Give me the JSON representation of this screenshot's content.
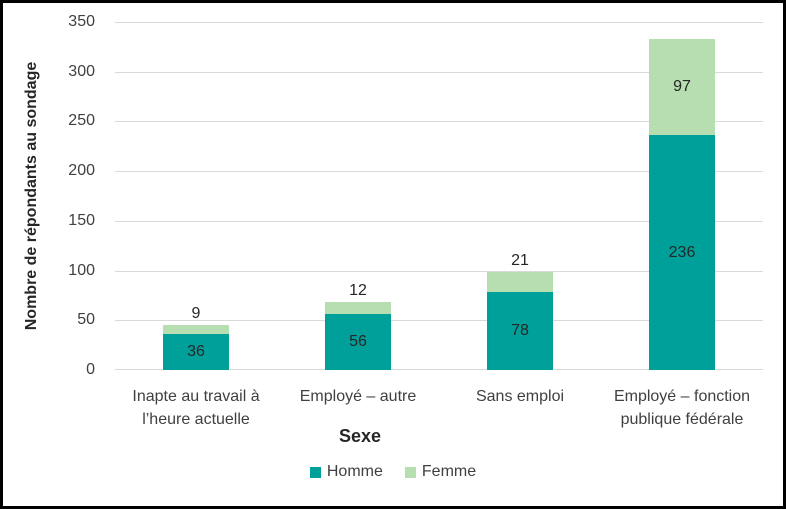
{
  "chart_data": {
    "type": "bar",
    "stacked": true,
    "title": "",
    "xlabel": "Sexe",
    "ylabel": "Nombre de répondants au sondage",
    "ylim": [
      0,
      350
    ],
    "y_ticks": [
      0,
      50,
      100,
      150,
      200,
      250,
      300,
      350
    ],
    "grid": true,
    "legend_position": "bottom",
    "categories": [
      "Inapte au travail à l’heure actuelle",
      "Employé – autre",
      "Sans emploi",
      "Employé – fonction publique fédérale"
    ],
    "category_lines": [
      [
        "Inapte au travail à",
        "l’heure actuelle"
      ],
      [
        "Employé – autre"
      ],
      [
        "Sans emploi"
      ],
      [
        "Employé – fonction",
        "publique fédérale"
      ]
    ],
    "series": [
      {
        "name": "Homme",
        "color": "#00A09A",
        "values": [
          36,
          56,
          78,
          236
        ]
      },
      {
        "name": "Femme",
        "color": "#B7DEB1",
        "values": [
          9,
          12,
          21,
          97
        ]
      }
    ]
  },
  "colors": {
    "gridline": "#D9D9D9",
    "axis_text": "#404040",
    "value_label": "#262626",
    "title_text": "#262626",
    "border": "#000000",
    "background": "#FFFFFF"
  }
}
